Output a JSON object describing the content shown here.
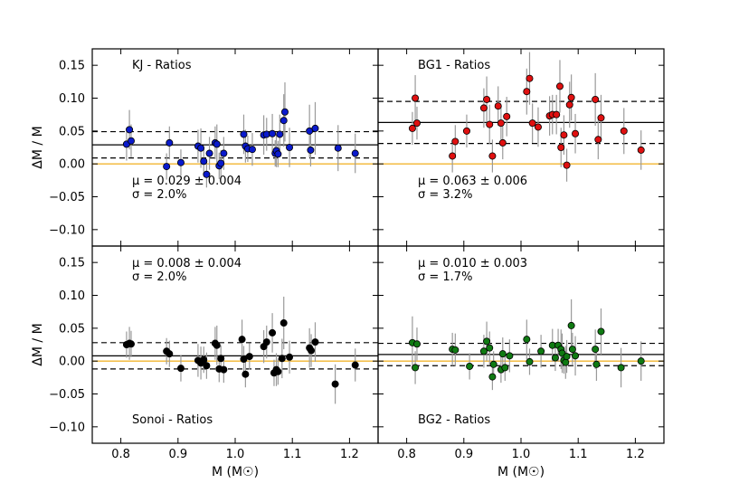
{
  "chart_data": {
    "type": "scatter",
    "layout": "2x2 grid with shared axes",
    "xlabel": "M (M☉)",
    "ylabel": "ΔM / M",
    "xlim": [
      0.75,
      1.25
    ],
    "ylim": [
      -0.125,
      0.175
    ],
    "xticks": [
      0.8,
      0.9,
      1.0,
      1.1,
      1.2
    ],
    "xtick_labels": [
      "0.8",
      "0.9",
      "1.0",
      "1.1",
      "1.2"
    ],
    "yticks": [
      -0.1,
      -0.05,
      0.0,
      0.05,
      0.1,
      0.15
    ],
    "ytick_labels": [
      "−0.10",
      "−0.05",
      "0.00",
      "0.05",
      "0.10",
      "0.15"
    ],
    "colors": {
      "zero_line": "#f2b630",
      "errorbar": "#9a9a9a"
    },
    "panels": [
      {
        "name": "KJ",
        "title": "KJ - Ratios",
        "color": "#0a1acc",
        "mean_text": "μ = 0.029 ± 0.004",
        "sigma_text": "σ = 2.0%",
        "mean": 0.029,
        "upper": 0.049,
        "lower": 0.009,
        "title_pos": "top-left",
        "stats_pos": "bottom-left",
        "points": [
          [
            0.81,
            0.03,
            0.025
          ],
          [
            0.815,
            0.052,
            0.03
          ],
          [
            0.818,
            0.035,
            0.025
          ],
          [
            0.88,
            -0.004,
            0.02
          ],
          [
            0.885,
            0.032,
            0.025
          ],
          [
            0.905,
            0.002,
            0.02
          ],
          [
            0.935,
            0.027,
            0.025
          ],
          [
            0.94,
            0.024,
            0.03
          ],
          [
            0.945,
            0.004,
            0.02
          ],
          [
            0.95,
            -0.016,
            0.02
          ],
          [
            0.955,
            0.016,
            0.025
          ],
          [
            0.965,
            0.032,
            0.025
          ],
          [
            0.968,
            0.03,
            0.03
          ],
          [
            0.972,
            -0.003,
            0.02
          ],
          [
            0.975,
            0.001,
            0.02
          ],
          [
            0.98,
            0.016,
            0.025
          ],
          [
            1.015,
            0.045,
            0.03
          ],
          [
            1.018,
            0.027,
            0.025
          ],
          [
            1.022,
            0.023,
            0.02
          ],
          [
            1.03,
            0.022,
            0.025
          ],
          [
            1.05,
            0.044,
            0.03
          ],
          [
            1.055,
            0.045,
            0.025
          ],
          [
            1.065,
            0.046,
            0.03
          ],
          [
            1.07,
            0.016,
            0.02
          ],
          [
            1.072,
            0.02,
            0.025
          ],
          [
            1.075,
            0.015,
            0.02
          ],
          [
            1.078,
            0.045,
            0.03
          ],
          [
            1.085,
            0.066,
            0.04
          ],
          [
            1.087,
            0.079,
            0.045
          ],
          [
            1.095,
            0.025,
            0.03
          ],
          [
            1.13,
            0.05,
            0.04
          ],
          [
            1.132,
            0.021,
            0.025
          ],
          [
            1.14,
            0.054,
            0.04
          ],
          [
            1.18,
            0.024,
            0.035
          ],
          [
            1.21,
            0.016,
            0.03
          ]
        ]
      },
      {
        "name": "BG1",
        "title": "BG1 - Ratios",
        "color": "#e01010",
        "mean_text": "μ = 0.063 ± 0.006",
        "sigma_text": "σ = 3.2%",
        "mean": 0.063,
        "upper": 0.095,
        "lower": 0.031,
        "title_pos": "top-left",
        "stats_pos": "bottom-left",
        "points": [
          [
            0.81,
            0.054,
            0.025
          ],
          [
            0.815,
            0.1,
            0.035
          ],
          [
            0.818,
            0.062,
            0.025
          ],
          [
            0.88,
            0.012,
            0.025
          ],
          [
            0.885,
            0.034,
            0.025
          ],
          [
            0.905,
            0.05,
            0.025
          ],
          [
            0.935,
            0.085,
            0.03
          ],
          [
            0.94,
            0.098,
            0.035
          ],
          [
            0.945,
            0.06,
            0.03
          ],
          [
            0.95,
            0.012,
            0.025
          ],
          [
            0.96,
            0.088,
            0.03
          ],
          [
            0.965,
            0.062,
            0.025
          ],
          [
            0.968,
            0.032,
            0.025
          ],
          [
            0.975,
            0.072,
            0.03
          ],
          [
            1.01,
            0.11,
            0.035
          ],
          [
            1.015,
            0.13,
            0.04
          ],
          [
            1.02,
            0.062,
            0.03
          ],
          [
            1.03,
            0.056,
            0.03
          ],
          [
            1.05,
            0.073,
            0.03
          ],
          [
            1.055,
            0.075,
            0.03
          ],
          [
            1.062,
            0.075,
            0.03
          ],
          [
            1.068,
            0.118,
            0.04
          ],
          [
            1.07,
            0.025,
            0.03
          ],
          [
            1.075,
            0.044,
            0.03
          ],
          [
            1.08,
            -0.002,
            0.025
          ],
          [
            1.085,
            0.09,
            0.035
          ],
          [
            1.088,
            0.101,
            0.035
          ],
          [
            1.095,
            0.046,
            0.03
          ],
          [
            1.13,
            0.098,
            0.04
          ],
          [
            1.135,
            0.037,
            0.03
          ],
          [
            1.14,
            0.07,
            0.035
          ],
          [
            1.18,
            0.05,
            0.035
          ],
          [
            1.21,
            0.021,
            0.03
          ]
        ]
      },
      {
        "name": "Sonoi",
        "title": "Sonoi - Ratios",
        "color": "#000000",
        "mean_text": "μ = 0.008 ± 0.004",
        "sigma_text": "σ = 2.0%",
        "mean": 0.008,
        "upper": 0.028,
        "lower": -0.012,
        "title_pos": "bottom-left",
        "stats_pos": "top-left",
        "points": [
          [
            0.81,
            0.025,
            0.02
          ],
          [
            0.815,
            0.027,
            0.025
          ],
          [
            0.818,
            0.026,
            0.02
          ],
          [
            0.88,
            0.015,
            0.02
          ],
          [
            0.885,
            0.011,
            0.02
          ],
          [
            0.905,
            -0.011,
            0.02
          ],
          [
            0.935,
            0.001,
            0.025
          ],
          [
            0.94,
            -0.003,
            0.025
          ],
          [
            0.945,
            0.002,
            0.02
          ],
          [
            0.95,
            -0.007,
            0.02
          ],
          [
            0.965,
            0.027,
            0.025
          ],
          [
            0.968,
            0.024,
            0.03
          ],
          [
            0.972,
            -0.012,
            0.02
          ],
          [
            0.975,
            0.004,
            0.02
          ],
          [
            0.98,
            -0.013,
            0.02
          ],
          [
            1.012,
            0.033,
            0.03
          ],
          [
            1.015,
            0.003,
            0.02
          ],
          [
            1.018,
            -0.02,
            0.02
          ],
          [
            1.025,
            0.007,
            0.02
          ],
          [
            1.05,
            0.022,
            0.025
          ],
          [
            1.055,
            0.029,
            0.025
          ],
          [
            1.065,
            0.043,
            0.03
          ],
          [
            1.068,
            -0.018,
            0.02
          ],
          [
            1.072,
            -0.013,
            0.025
          ],
          [
            1.075,
            -0.016,
            0.02
          ],
          [
            1.082,
            0.004,
            0.03
          ],
          [
            1.085,
            0.058,
            0.04
          ],
          [
            1.095,
            0.006,
            0.025
          ],
          [
            1.13,
            0.02,
            0.03
          ],
          [
            1.133,
            0.016,
            0.025
          ],
          [
            1.14,
            0.029,
            0.03
          ],
          [
            1.175,
            -0.035,
            0.03
          ],
          [
            1.21,
            -0.006,
            0.025
          ]
        ]
      },
      {
        "name": "BG2",
        "title": "BG2 - Ratios",
        "color": "#0f7a12",
        "mean_text": "μ = 0.010 ± 0.003",
        "sigma_text": "σ = 1.7%",
        "mean": 0.01,
        "upper": 0.027,
        "lower": -0.007,
        "title_pos": "bottom-left",
        "stats_pos": "top-left",
        "points": [
          [
            0.81,
            0.028,
            0.04
          ],
          [
            0.815,
            -0.01,
            0.025
          ],
          [
            0.818,
            0.026,
            0.025
          ],
          [
            0.88,
            0.018,
            0.025
          ],
          [
            0.885,
            0.017,
            0.025
          ],
          [
            0.91,
            -0.008,
            0.02
          ],
          [
            0.935,
            0.015,
            0.025
          ],
          [
            0.94,
            0.03,
            0.03
          ],
          [
            0.945,
            0.02,
            0.025
          ],
          [
            0.95,
            -0.024,
            0.02
          ],
          [
            0.952,
            -0.005,
            0.02
          ],
          [
            0.965,
            -0.013,
            0.02
          ],
          [
            0.968,
            0.011,
            0.025
          ],
          [
            0.972,
            -0.01,
            0.02
          ],
          [
            0.98,
            0.008,
            0.025
          ],
          [
            1.01,
            0.033,
            0.03
          ],
          [
            1.015,
            -0.001,
            0.02
          ],
          [
            1.035,
            0.015,
            0.025
          ],
          [
            1.055,
            0.024,
            0.025
          ],
          [
            1.06,
            0.005,
            0.02
          ],
          [
            1.065,
            0.024,
            0.025
          ],
          [
            1.07,
            0.018,
            0.03
          ],
          [
            1.072,
            0.012,
            0.03
          ],
          [
            1.075,
            0.001,
            0.02
          ],
          [
            1.078,
            -0.002,
            0.025
          ],
          [
            1.08,
            0.007,
            0.025
          ],
          [
            1.088,
            0.054,
            0.04
          ],
          [
            1.09,
            0.018,
            0.025
          ],
          [
            1.095,
            0.008,
            0.03
          ],
          [
            1.13,
            0.018,
            0.03
          ],
          [
            1.132,
            -0.005,
            0.025
          ],
          [
            1.14,
            0.045,
            0.035
          ],
          [
            1.175,
            -0.01,
            0.03
          ],
          [
            1.21,
            0.0,
            0.03
          ]
        ]
      }
    ]
  }
}
